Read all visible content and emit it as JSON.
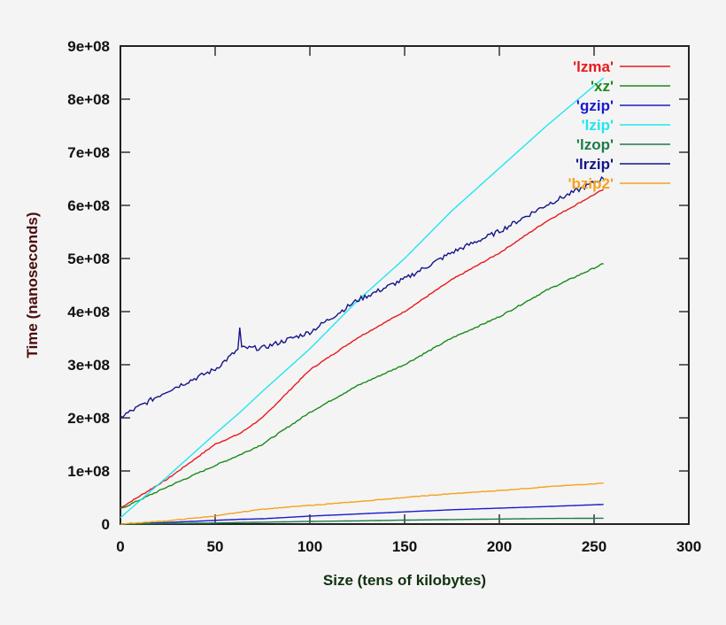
{
  "chart_data": {
    "type": "line",
    "title": "",
    "xlabel": "Size (tens of kilobytes)",
    "ylabel": "Time (nanoseconds)",
    "xlim": [
      0,
      300
    ],
    "ylim": [
      0,
      900000000
    ],
    "x_ticks": [
      "0",
      "50",
      "100",
      "150",
      "200",
      "250",
      "300"
    ],
    "y_ticks": [
      "0",
      "1e+08",
      "2e+08",
      "3e+08",
      "4e+08",
      "5e+08",
      "6e+08",
      "7e+08",
      "8e+08",
      "9e+08"
    ],
    "grid": false,
    "legend_position": "top-right (inside)",
    "x": [
      0,
      25,
      50,
      63,
      75,
      100,
      125,
      150,
      175,
      200,
      225,
      255
    ],
    "series": [
      {
        "name": "'lzma'",
        "color": "#e8191b",
        "values": [
          30000000,
          85000000,
          150000000,
          170000000,
          200000000,
          290000000,
          350000000,
          400000000,
          460000000,
          510000000,
          570000000,
          630000000
        ]
      },
      {
        "name": "'xz'",
        "color": "#1a8a1a",
        "values": [
          28000000,
          70000000,
          110000000,
          130000000,
          150000000,
          210000000,
          260000000,
          300000000,
          350000000,
          390000000,
          440000000,
          490000000
        ]
      },
      {
        "name": "'gzip'",
        "color": "#1a1acc",
        "values": [
          0,
          3000000,
          7000000,
          9000000,
          10000000,
          15000000,
          19000000,
          23000000,
          27000000,
          30000000,
          33000000,
          37000000
        ]
      },
      {
        "name": "'lzip'",
        "color": "#22e6ee",
        "values": [
          12000000,
          90000000,
          170000000,
          210000000,
          250000000,
          330000000,
          420000000,
          500000000,
          590000000,
          670000000,
          750000000,
          840000000
        ]
      },
      {
        "name": "'lzop'",
        "color": "#1e7a4a",
        "values": [
          0,
          1000000,
          2000000,
          3000000,
          3500000,
          5000000,
          6000000,
          7500000,
          8500000,
          9500000,
          10500000,
          11000000
        ]
      },
      {
        "name": "'lrzip'",
        "color": "#14148a",
        "values": [
          200000000,
          250000000,
          290000000,
          370000000,
          330000000,
          360000000,
          420000000,
          460000000,
          510000000,
          550000000,
          600000000,
          650000000
        ]
      },
      {
        "name": "'bzip2'",
        "color": "#f4a21c",
        "values": [
          0,
          6000000,
          15000000,
          22000000,
          28000000,
          35000000,
          42000000,
          50000000,
          57000000,
          63000000,
          70000000,
          77000000
        ]
      }
    ]
  }
}
